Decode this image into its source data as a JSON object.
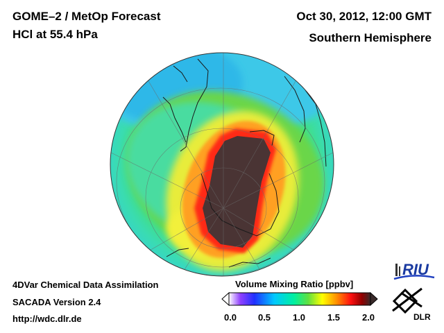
{
  "header": {
    "title_line1": "GOME–2 / MetOp Forecast",
    "title_line2": "HCl at 55.4 hPa",
    "date": "Oct 30, 2012, 12:00 GMT",
    "region": "Southern Hemisphere"
  },
  "footer": {
    "line1": "4DVar Chemical Data Assimilation",
    "line2": "SACADA Version 2.4",
    "line3": "http://wdc.dlr.de"
  },
  "colorbar": {
    "title": "Volume Mixing Ratio [ppbv]",
    "ticks": [
      "0.0",
      "0.5",
      "1.0",
      "1.5",
      "2.0"
    ],
    "range": [
      0.0,
      2.0
    ],
    "colors": [
      "#ffffff",
      "#8000ff",
      "#2020ff",
      "#00c8ff",
      "#00ffa0",
      "#40e040",
      "#ffff00",
      "#ff8000",
      "#ff0000",
      "#7a0000",
      "#3a2a2a"
    ]
  },
  "logos": {
    "riu": "RIU",
    "dlr": "DLR"
  },
  "map": {
    "projection": "orthographic-south-pole",
    "field_colors": {
      "ocean_band": "#33d6d8",
      "mid_band": "#5cd96e",
      "vortex_edge": "#ff2a1a",
      "vortex_core": "#4a3434"
    }
  }
}
